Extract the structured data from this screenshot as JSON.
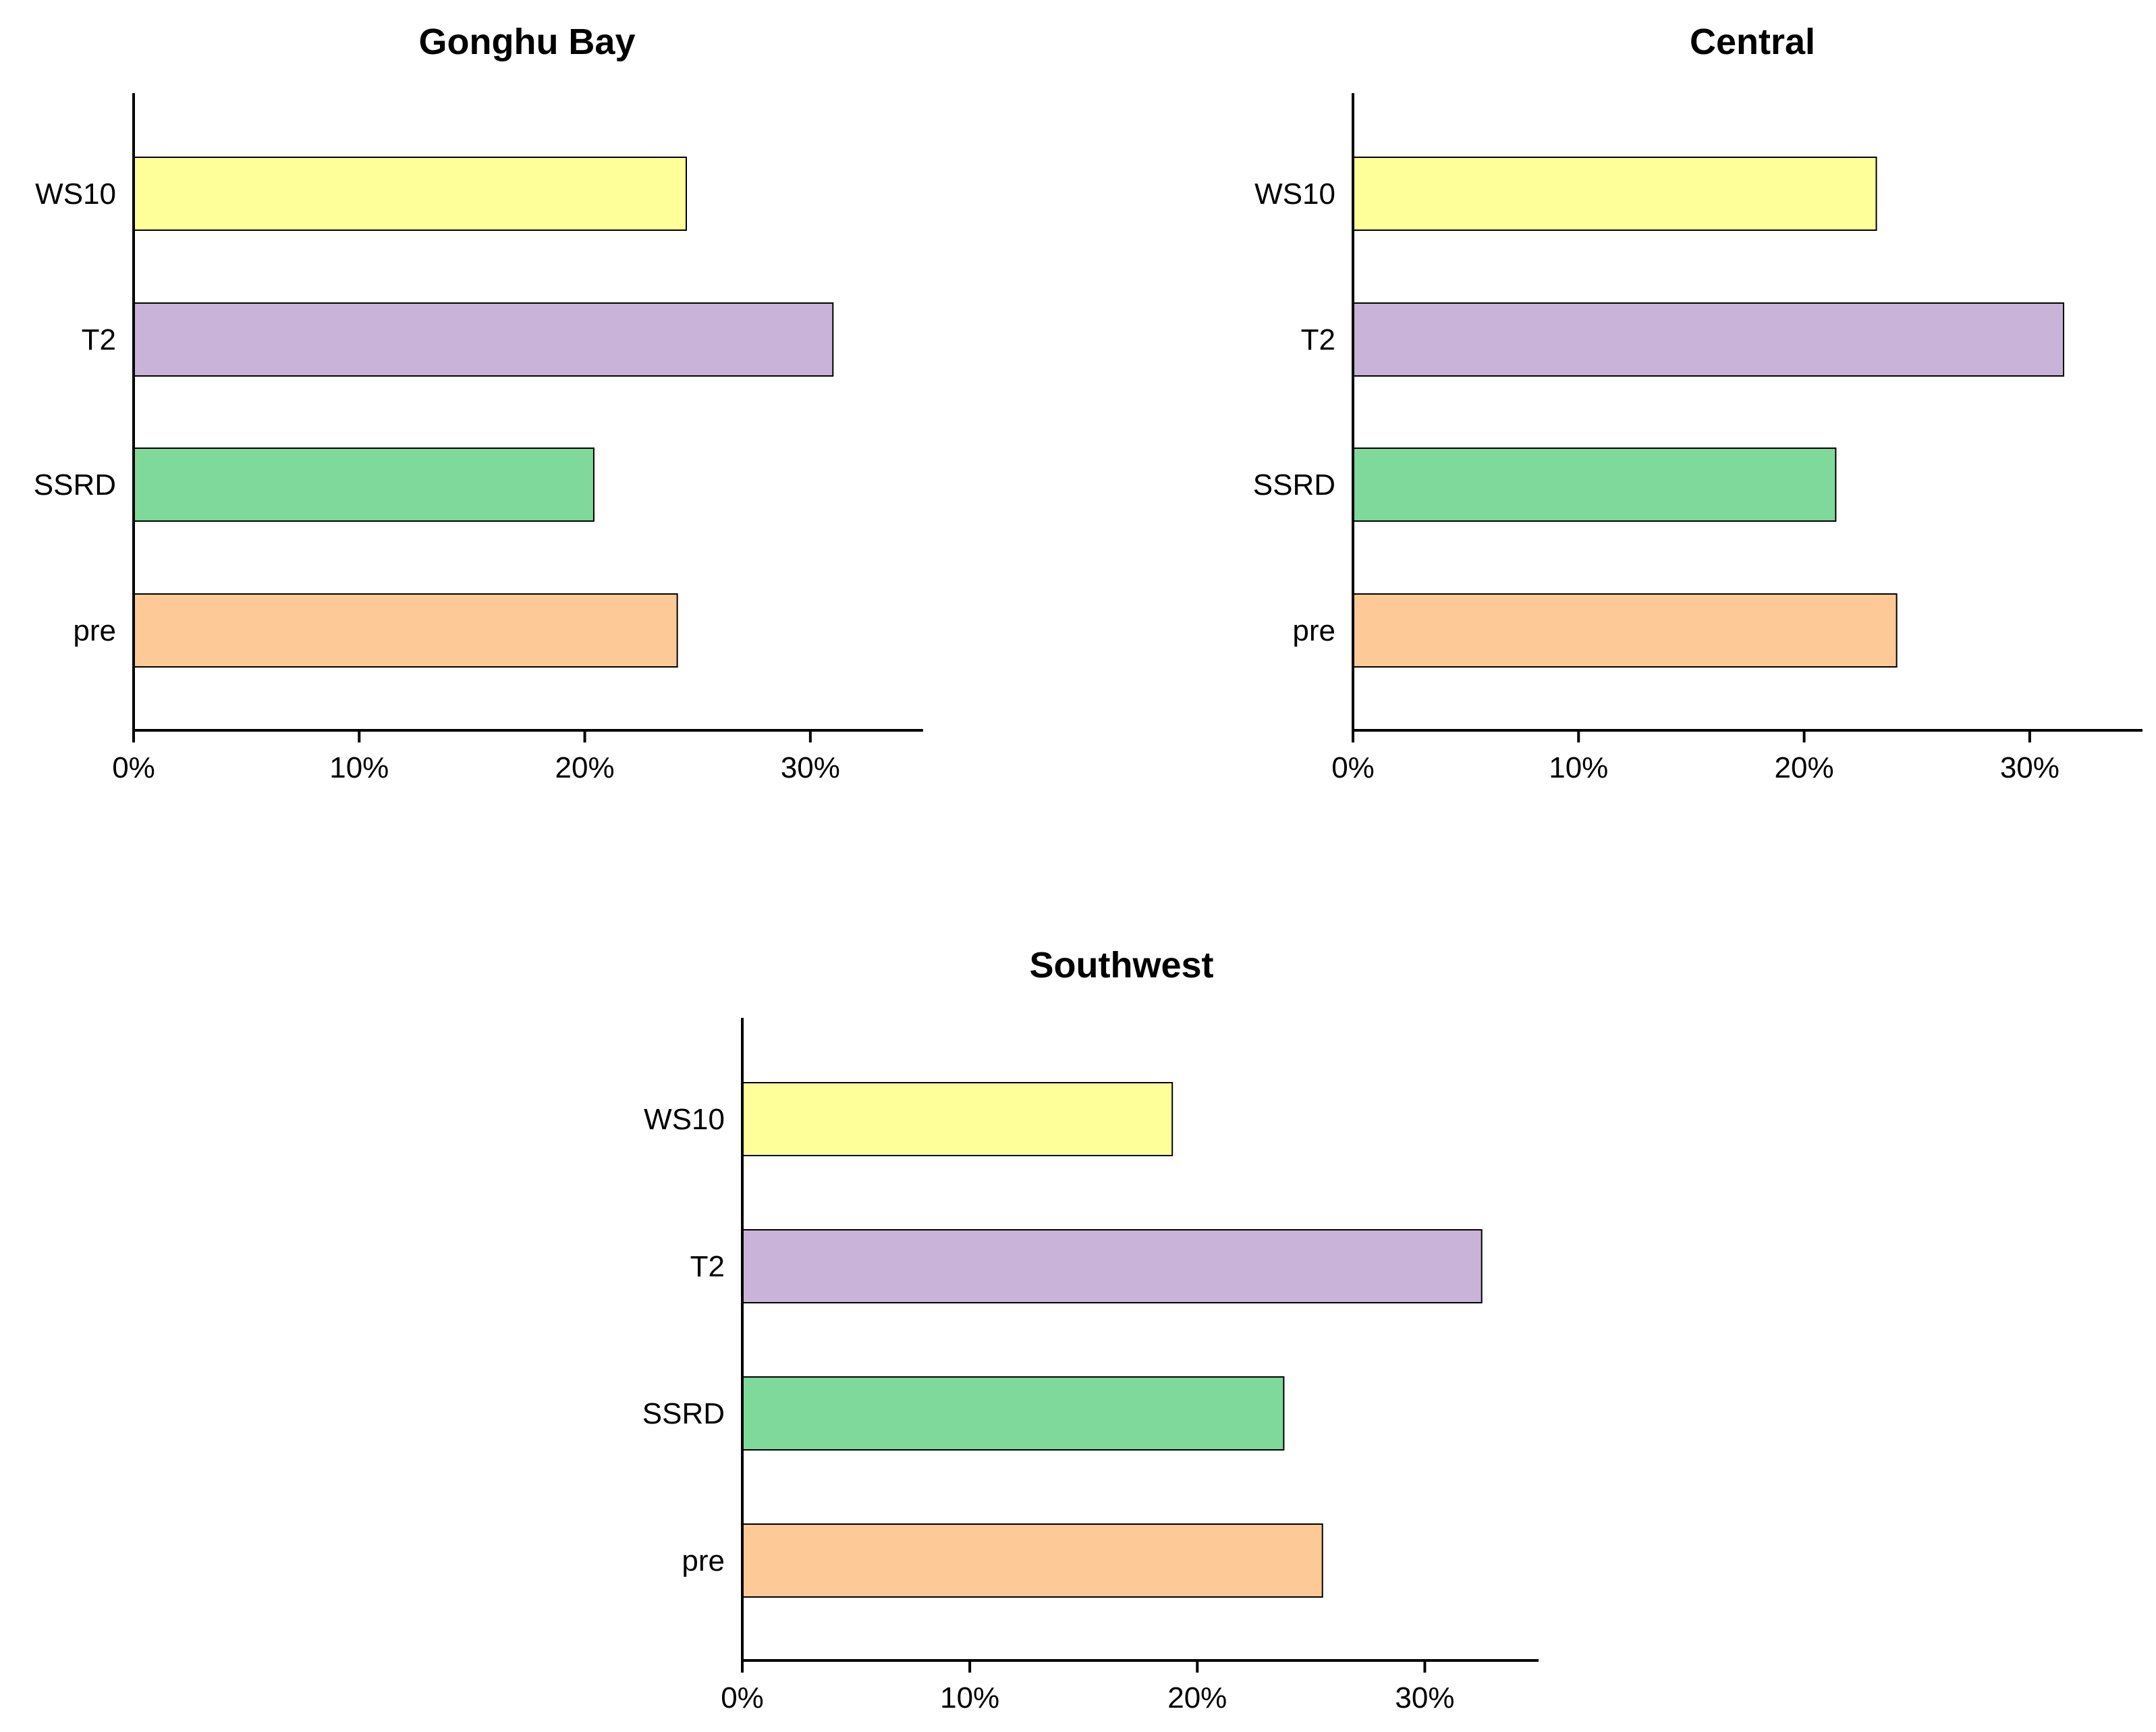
{
  "chart_data": [
    {
      "type": "bar",
      "orientation": "horizontal",
      "title": "Gonghu Bay",
      "categories": [
        "WS10",
        "T2",
        "SSRD",
        "pre"
      ],
      "values": [
        24.5,
        31.0,
        20.4,
        24.1
      ],
      "colors": [
        "#FFFF99",
        "#C9B3D8",
        "#7FD99A",
        "#FDC997"
      ],
      "xlim": [
        0,
        35
      ],
      "xticks": [
        "0%",
        "10%",
        "20%",
        "30%"
      ],
      "xtick_values": [
        0,
        10,
        20,
        30
      ],
      "xlabel": "",
      "ylabel": ""
    },
    {
      "type": "bar",
      "orientation": "horizontal",
      "title": "Central",
      "categories": [
        "WS10",
        "T2",
        "SSRD",
        "pre"
      ],
      "values": [
        23.2,
        31.5,
        21.4,
        24.1
      ],
      "colors": [
        "#FFFF99",
        "#C9B3D8",
        "#7FD99A",
        "#FDC997"
      ],
      "xlim": [
        0,
        35
      ],
      "xticks": [
        "0%",
        "10%",
        "20%",
        "30%"
      ],
      "xtick_values": [
        0,
        10,
        20,
        30
      ],
      "xlabel": "",
      "ylabel": ""
    },
    {
      "type": "bar",
      "orientation": "horizontal",
      "title": "Southwest",
      "categories": [
        "WS10",
        "T2",
        "SSRD",
        "pre"
      ],
      "values": [
        18.9,
        32.5,
        23.8,
        25.5
      ],
      "colors": [
        "#FFFF99",
        "#C9B3D8",
        "#7FD99A",
        "#FDC997"
      ],
      "xlim": [
        0,
        35
      ],
      "xticks": [
        "0%",
        "10%",
        "20%",
        "30%"
      ],
      "xtick_values": [
        0,
        10,
        20,
        30
      ],
      "xlabel": "",
      "ylabel": ""
    }
  ]
}
